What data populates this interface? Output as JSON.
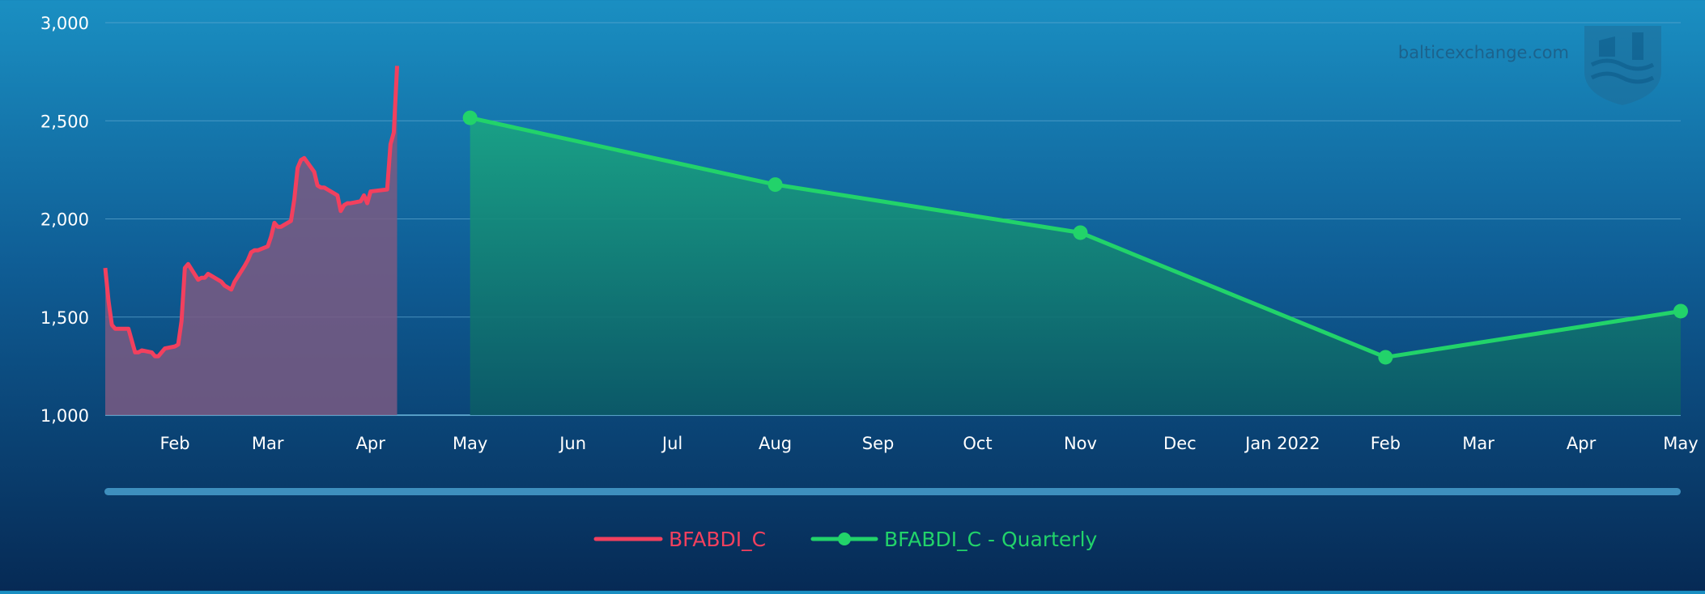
{
  "watermark": {
    "text": "balticexchange.com",
    "logo_icon": "baltic-exchange-shield-icon"
  },
  "colors": {
    "daily": "#f2405e",
    "daily_fill": "#7a5a82",
    "quarterly": "#22d36a",
    "quarterly_fill_top": "#1aa582",
    "quarterly_fill_bottom": "#0b5a66",
    "grid": "#5fa8cf",
    "scrollbar": "#3e8fbe"
  },
  "chart_data": {
    "type": "line",
    "title": "",
    "xlabel": "",
    "ylabel": "",
    "ylim": [
      1000,
      3000
    ],
    "y_ticks": [
      "1,000",
      "1,500",
      "2,000",
      "2,500",
      "3,000"
    ],
    "y_tick_values": [
      1000,
      1500,
      2000,
      2500,
      3000
    ],
    "x_tick_labels": [
      "Feb",
      "Mar",
      "Apr",
      "May",
      "Jun",
      "Jul",
      "Aug",
      "Sep",
      "Oct",
      "Nov",
      "Dec",
      "Jan 2022",
      "Feb",
      "Mar",
      "Apr",
      "May"
    ],
    "x_tick_dates": [
      "2021-02-01",
      "2021-03-01",
      "2021-04-01",
      "2021-05-01",
      "2021-06-01",
      "2021-07-01",
      "2021-08-01",
      "2021-09-01",
      "2021-10-01",
      "2021-11-01",
      "2021-12-01",
      "2022-01-01",
      "2022-02-01",
      "2022-03-01",
      "2022-04-01",
      "2022-05-01"
    ],
    "xlim": [
      "2021-01-11",
      "2022-05-01"
    ],
    "grid": true,
    "legend": "bottom-center",
    "series": [
      {
        "name": "BFABDI_C",
        "style": "area-line",
        "x": [
          "2021-01-11",
          "2021-01-12",
          "2021-01-13",
          "2021-01-14",
          "2021-01-15",
          "2021-01-18",
          "2021-01-19",
          "2021-01-20",
          "2021-01-21",
          "2021-01-22",
          "2021-01-25",
          "2021-01-26",
          "2021-01-27",
          "2021-01-28",
          "2021-01-29",
          "2021-02-01",
          "2021-02-02",
          "2021-02-03",
          "2021-02-04",
          "2021-02-05",
          "2021-02-08",
          "2021-02-09",
          "2021-02-10",
          "2021-02-11",
          "2021-02-12",
          "2021-02-15",
          "2021-02-16",
          "2021-02-17",
          "2021-02-18",
          "2021-02-19",
          "2021-02-22",
          "2021-02-23",
          "2021-02-24",
          "2021-02-25",
          "2021-02-26",
          "2021-03-01",
          "2021-03-02",
          "2021-03-03",
          "2021-03-04",
          "2021-03-05",
          "2021-03-08",
          "2021-03-09",
          "2021-03-10",
          "2021-03-11",
          "2021-03-12",
          "2021-03-15",
          "2021-03-16",
          "2021-03-17",
          "2021-03-18",
          "2021-03-19",
          "2021-03-22",
          "2021-03-23",
          "2021-03-24",
          "2021-03-25",
          "2021-03-26",
          "2021-03-29",
          "2021-03-30",
          "2021-03-31",
          "2021-04-01",
          "2021-04-06",
          "2021-04-07",
          "2021-04-08",
          "2021-04-09"
        ],
        "values": [
          1750,
          1580,
          1460,
          1440,
          1440,
          1440,
          1380,
          1320,
          1320,
          1330,
          1320,
          1300,
          1300,
          1320,
          1340,
          1350,
          1360,
          1480,
          1750,
          1770,
          1690,
          1700,
          1700,
          1720,
          1710,
          1680,
          1660,
          1650,
          1640,
          1680,
          1760,
          1790,
          1830,
          1840,
          1840,
          1860,
          1910,
          1980,
          1960,
          1960,
          1990,
          2100,
          2260,
          2300,
          2310,
          2240,
          2170,
          2160,
          2160,
          2150,
          2120,
          2040,
          2070,
          2080,
          2080,
          2090,
          2120,
          2080,
          2140,
          2150,
          2380,
          2440,
          2780
        ]
      },
      {
        "name": "BFABDI_C - Quarterly",
        "style": "area-line-markers",
        "x": [
          "2021-05-01",
          "2021-08-01",
          "2021-11-01",
          "2022-02-01",
          "2022-05-01"
        ],
        "values": [
          2515,
          2175,
          1930,
          1295,
          1530
        ]
      }
    ]
  }
}
